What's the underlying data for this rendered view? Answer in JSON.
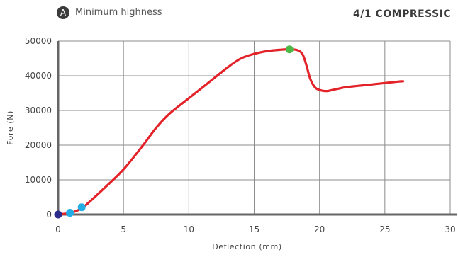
{
  "header": {
    "badge_letter": "A",
    "subtitle": "Minimum highness",
    "title": "4/1 COMPRESSIC"
  },
  "colors": {
    "curve": "#e3232a",
    "grid": "#8c8c8c",
    "axis": "#666666",
    "marker_start": "#2b2b8c",
    "marker_early": "#22aee5",
    "marker_peak": "#4cb848"
  },
  "chart_data": {
    "type": "line",
    "title": "",
    "xlabel": "Deflection (mm)",
    "ylabel": "Fore (N)",
    "xlim": [
      0,
      30
    ],
    "ylim": [
      0,
      50000
    ],
    "grid": true,
    "x_ticks": [
      "0",
      "5",
      "10",
      "15",
      "20",
      "25",
      "30"
    ],
    "y_ticks": [
      "0",
      "10000",
      "20000",
      "30000",
      "40000",
      "50000"
    ],
    "series": [
      {
        "x": [
          0.0,
          0.5,
          1.0,
          1.8,
          2.5,
          3.5,
          5.0,
          6.5,
          7.5,
          8.5,
          10.0,
          11.5,
          13.0,
          14.0,
          15.0,
          16.0,
          17.0,
          17.7,
          18.3,
          18.7,
          19.0,
          19.3,
          19.7,
          20.2,
          20.6,
          21.0,
          22.0,
          23.0,
          24.0,
          25.0,
          26.0,
          26.4
        ],
        "y": [
          0,
          200,
          500,
          1800,
          4000,
          7500,
          13000,
          20000,
          25000,
          29000,
          33500,
          38000,
          42500,
          45000,
          46300,
          47100,
          47500,
          47600,
          47400,
          46200,
          43000,
          39000,
          36500,
          35700,
          35600,
          35900,
          36700,
          37100,
          37500,
          37900,
          38300,
          38400
        ]
      }
    ],
    "markers": [
      {
        "x": 0.0,
        "y": 0
      },
      {
        "x": 0.9,
        "y": 500
      },
      {
        "x": 1.8,
        "y": 2100
      },
      {
        "x": 17.7,
        "y": 47600
      }
    ]
  }
}
